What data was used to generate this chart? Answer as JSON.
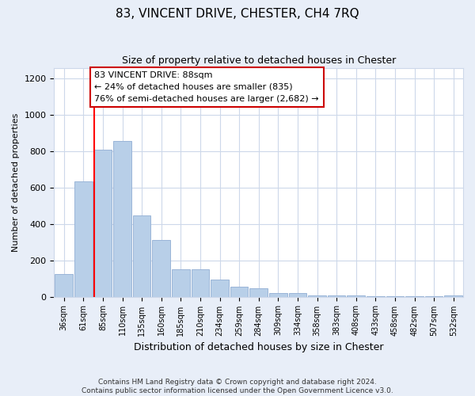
{
  "title": "83, VINCENT DRIVE, CHESTER, CH4 7RQ",
  "subtitle": "Size of property relative to detached houses in Chester",
  "xlabel": "Distribution of detached houses by size in Chester",
  "ylabel": "Number of detached properties",
  "categories": [
    "36sqm",
    "61sqm",
    "85sqm",
    "110sqm",
    "135sqm",
    "160sqm",
    "185sqm",
    "210sqm",
    "234sqm",
    "259sqm",
    "284sqm",
    "309sqm",
    "334sqm",
    "358sqm",
    "383sqm",
    "408sqm",
    "433sqm",
    "458sqm",
    "482sqm",
    "507sqm",
    "532sqm"
  ],
  "values": [
    125,
    635,
    810,
    855,
    445,
    310,
    150,
    150,
    95,
    55,
    45,
    20,
    20,
    5,
    5,
    5,
    3,
    3,
    3,
    3,
    8
  ],
  "bar_color": "#b8cfe8",
  "bar_edgecolor": "#9ab5d8",
  "grid_color": "#cdd8ea",
  "background_color": "#e8eef8",
  "plot_background": "#ffffff",
  "red_line_x": 2.0,
  "annotation_line1": "83 VINCENT DRIVE: 88sqm",
  "annotation_line2": "← 24% of detached houses are smaller (835)",
  "annotation_line3": "76% of semi-detached houses are larger (2,682) →",
  "annotation_box_facecolor": "#ffffff",
  "annotation_box_edgecolor": "#cc0000",
  "ylim": [
    0,
    1260
  ],
  "yticks": [
    0,
    200,
    400,
    600,
    800,
    1000,
    1200
  ],
  "footer_line1": "Contains HM Land Registry data © Crown copyright and database right 2024.",
  "footer_line2": "Contains public sector information licensed under the Open Government Licence v3.0."
}
